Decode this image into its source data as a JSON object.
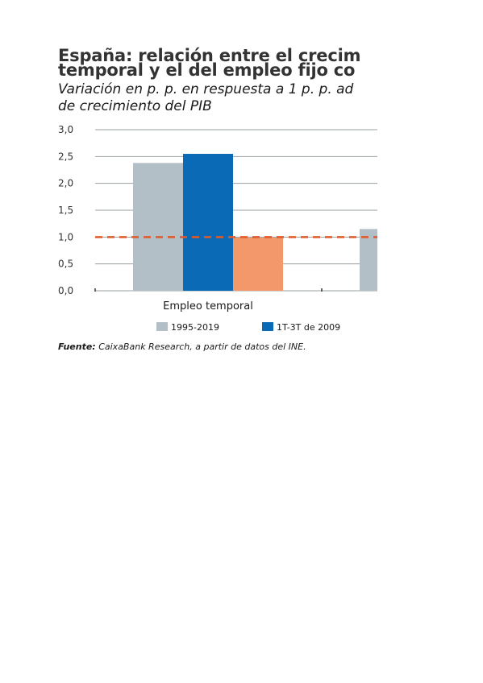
{
  "title_line1": "España: relación entre el crecim",
  "title_line2": "temporal y el del empleo fijo co",
  "subtitle_line1": "Variación en p. p. en respuesta a 1 p. p. ad",
  "subtitle_line2": "de crecimiento del PIB",
  "source_label": "Fuente:",
  "source_text": "CaixaBank Research, a partir de datos del INE.",
  "chart_data": {
    "type": "bar",
    "categories": [
      "Empleo temporal",
      ""
    ],
    "series": [
      {
        "name": "1995-2019",
        "color": "#b3bfc6",
        "values": [
          2.38,
          1.15
        ]
      },
      {
        "name": "1T-3T de 2009",
        "color": "#0a6ab5",
        "values": [
          2.55,
          null
        ]
      },
      {
        "name": "",
        "color": "#f2986a",
        "values": [
          0.99,
          null
        ]
      }
    ],
    "reference_line": {
      "y": 1.0,
      "color": "#e05a2b",
      "style": "dashed"
    },
    "ylim": [
      0,
      3.0
    ],
    "yticks": [
      "3,0",
      "2,5",
      "2,0",
      "1,5",
      "1,0",
      "0,5",
      "0,0"
    ],
    "ytick_values": [
      3.0,
      2.5,
      2.0,
      1.5,
      1.0,
      0.5,
      0.0
    ],
    "grid": true,
    "legend_position": "bottom",
    "xlabel": "",
    "ylabel": ""
  }
}
